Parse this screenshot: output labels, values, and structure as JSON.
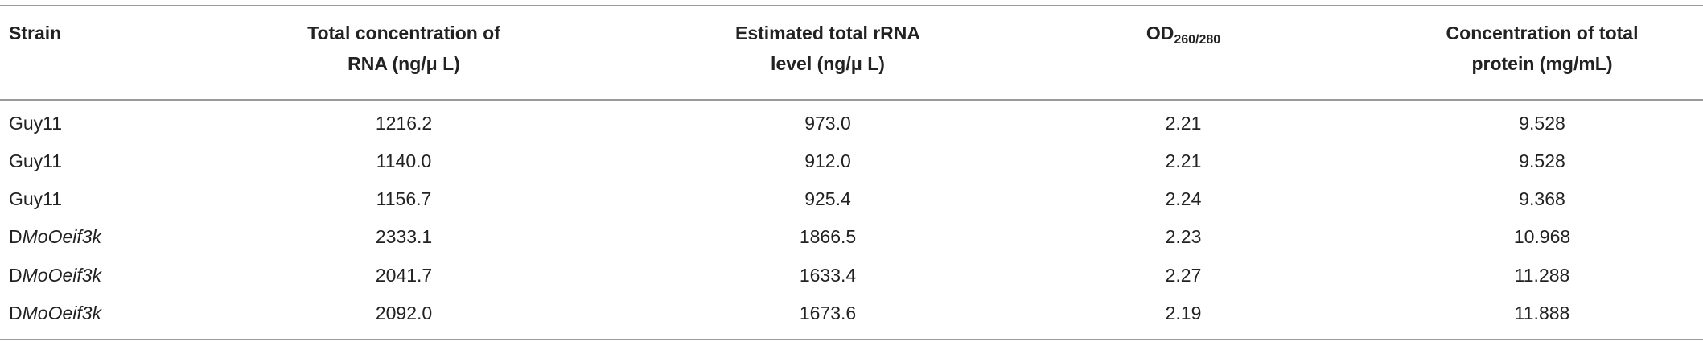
{
  "table": {
    "header": [
      {
        "lines": [
          "Strain"
        ]
      },
      {
        "lines": [
          "Total concentration of",
          "RNA (ng/μ L)"
        ]
      },
      {
        "lines": [
          "Estimated total rRNA",
          "level (ng/μ L)"
        ]
      },
      {
        "text": "OD",
        "subscript": "260/280"
      },
      {
        "lines": [
          "Concentration of total",
          "protein (mg/mL)"
        ]
      }
    ],
    "rows": [
      [
        {
          "text": "Guy11"
        },
        "1216.2",
        "973.0",
        "2.21",
        "9.528"
      ],
      [
        {
          "text": "Guy11"
        },
        "1140.0",
        "912.0",
        "2.21",
        "9.528"
      ],
      [
        {
          "text": "Guy11"
        },
        "1156.7",
        "925.4",
        "2.24",
        "9.368"
      ],
      [
        {
          "prefix": "D",
          "italic": "MoOeif3k"
        },
        "2333.1",
        "1866.5",
        "2.23",
        "10.968"
      ],
      [
        {
          "prefix": "D",
          "italic": "MoOeif3k"
        },
        "2041.7",
        "1633.4",
        "2.27",
        "11.288"
      ],
      [
        {
          "prefix": "D",
          "italic": "MoOeif3k"
        },
        "2092.0",
        "1673.6",
        "2.19",
        "11.888"
      ]
    ]
  }
}
